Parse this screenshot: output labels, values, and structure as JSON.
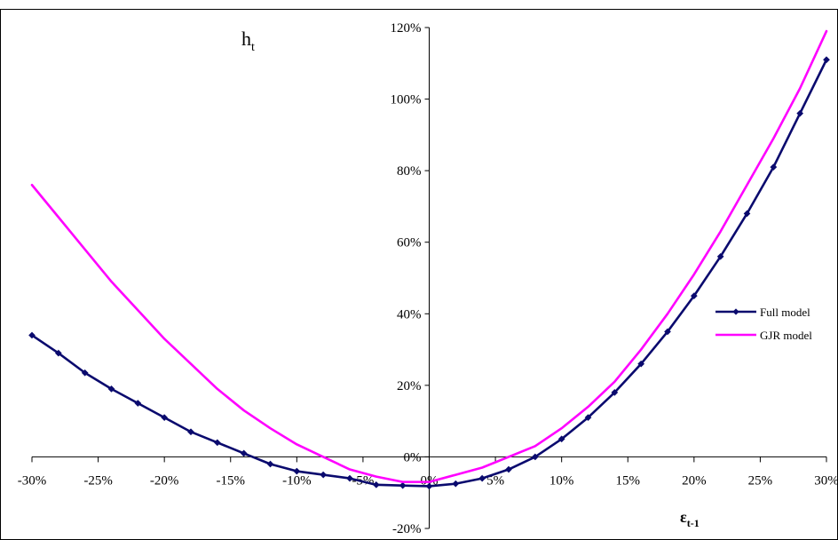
{
  "chart_data": {
    "type": "line",
    "title": "",
    "ylabel": {
      "main": "h",
      "sub": "t"
    },
    "xlabel": {
      "main": "ε",
      "sub": "t-1"
    },
    "xlim": [
      -30,
      30
    ],
    "ylim": [
      -20,
      120
    ],
    "x_ticks": [
      "-30%",
      "-25%",
      "-20%",
      "-15%",
      "-10%",
      "-5%",
      "0%",
      "5%",
      "10%",
      "15%",
      "20%",
      "25%",
      "30%"
    ],
    "y_ticks": [
      "-20%",
      "0%",
      "20%",
      "40%",
      "60%",
      "80%",
      "100%",
      "120%"
    ],
    "grid": false,
    "legend_position": "right",
    "series": [
      {
        "name": "Full model",
        "color": "#0a0a6e",
        "marker": "diamond",
        "x": [
          -30,
          -28,
          -26,
          -24,
          -22,
          -20,
          -18,
          -16,
          -14,
          -12,
          -10,
          -8,
          -6,
          -4,
          -2,
          0,
          2,
          4,
          6,
          8,
          10,
          12,
          14,
          16,
          18,
          20,
          22,
          24,
          26,
          28,
          30
        ],
        "y": [
          34,
          29,
          23.5,
          19,
          15,
          11,
          7,
          4,
          1,
          -2,
          -4,
          -5,
          -6,
          -7.8,
          -8,
          -8.2,
          -7.5,
          -6,
          -3.5,
          0,
          5,
          11,
          18,
          26,
          35,
          45,
          56,
          68,
          81,
          96,
          111
        ]
      },
      {
        "name": "GJR model",
        "color": "#ff00ff",
        "marker": "none",
        "x": [
          -30,
          -28,
          -26,
          -24,
          -22,
          -20,
          -18,
          -16,
          -14,
          -12,
          -10,
          -8,
          -6,
          -4,
          -2,
          0,
          2,
          4,
          6,
          8,
          10,
          12,
          14,
          16,
          18,
          20,
          22,
          24,
          26,
          28,
          30
        ],
        "y": [
          76,
          67,
          58,
          49,
          41,
          33,
          26,
          19,
          13,
          8,
          3.5,
          0,
          -3.5,
          -5.5,
          -7,
          -7,
          -5,
          -3,
          0,
          3,
          8,
          14,
          21,
          30,
          40,
          51,
          63,
          76,
          89,
          103,
          119
        ]
      }
    ]
  }
}
